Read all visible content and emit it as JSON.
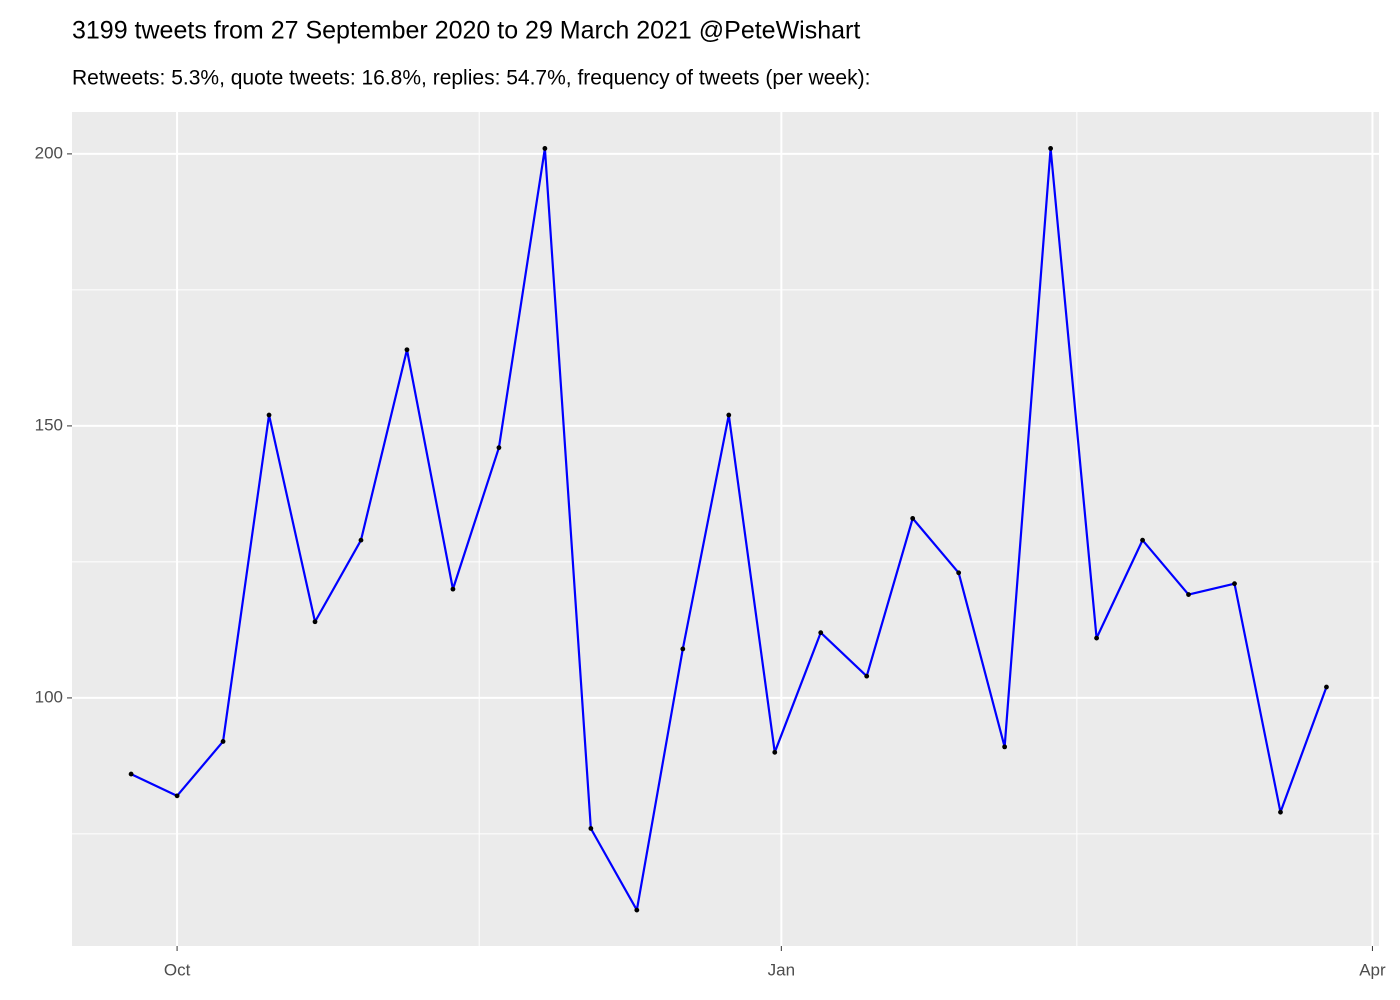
{
  "chart_data": {
    "type": "line",
    "title": "3199 tweets from 27 September 2020 to 29 March 2021 @PeteWishart",
    "subtitle": "Retweets: 5.3%, quote tweets: 16.8%, replies: 54.7%, frequency of tweets (per week):",
    "x": [
      "2020-09-24",
      "2020-10-01",
      "2020-10-08",
      "2020-10-15",
      "2020-10-22",
      "2020-10-29",
      "2020-11-05",
      "2020-11-12",
      "2020-11-19",
      "2020-11-26",
      "2020-12-03",
      "2020-12-10",
      "2020-12-17",
      "2020-12-24",
      "2020-12-31",
      "2021-01-07",
      "2021-01-14",
      "2021-01-21",
      "2021-01-28",
      "2021-02-04",
      "2021-02-11",
      "2021-02-18",
      "2021-02-25",
      "2021-03-04",
      "2021-03-11",
      "2021-03-18",
      "2021-03-25"
    ],
    "series": [
      {
        "color": "#0000ff",
        "point_color": "#000000",
        "values": [
          86,
          82,
          92,
          152,
          114,
          129,
          164,
          120,
          146,
          201,
          76,
          61,
          109,
          152,
          90,
          112,
          104,
          133,
          123,
          91,
          201,
          111,
          129,
          119,
          121,
          79,
          102
        ]
      }
    ],
    "xlim": [
      "2020-09-15",
      "2021-04-02"
    ],
    "xticks": [
      {
        "value": "2020-10-01",
        "label": "Oct"
      },
      {
        "value": "2021-01-01",
        "label": "Jan"
      },
      {
        "value": "2021-04-01",
        "label": "Apr"
      }
    ],
    "ylim": [
      54.4,
      207.7
    ],
    "yticks": [
      100,
      150,
      200
    ],
    "grid": true
  }
}
